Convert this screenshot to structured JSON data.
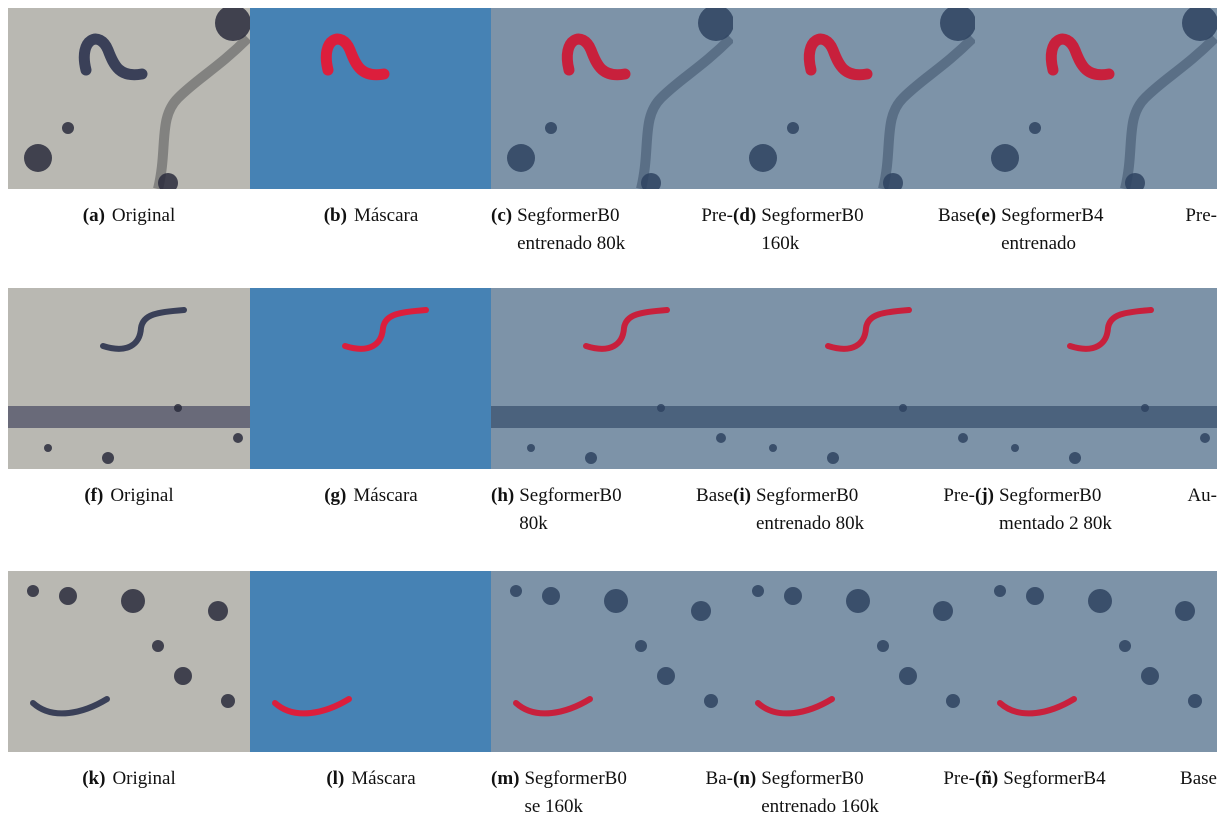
{
  "figure": {
    "rows": [
      {
        "panels": [
          {
            "label": "(a)",
            "caption": [
              "Original"
            ]
          },
          {
            "label": "(b)",
            "caption": [
              "Máscara"
            ]
          },
          {
            "label": "(c)",
            "caption": [
              "SegformerB0 Pre-",
              "entrenado 80k"
            ]
          },
          {
            "label": "(d)",
            "caption": [
              "SegformerB0 Base",
              "160k"
            ]
          },
          {
            "label": "(e)",
            "caption": [
              "SegformerB4 Pre-",
              "entrenado"
            ]
          }
        ]
      },
      {
        "panels": [
          {
            "label": "(f)",
            "caption": [
              "Original"
            ]
          },
          {
            "label": "(g)",
            "caption": [
              "Máscara"
            ]
          },
          {
            "label": "(h)",
            "caption": [
              "SegformerB0 Base",
              "80k"
            ]
          },
          {
            "label": "(i)",
            "caption": [
              "SegformerB0 Pre-",
              "entrenado 80k"
            ]
          },
          {
            "label": "(j)",
            "caption": [
              "SegformerB0 Au-",
              "mentado 2 80k"
            ]
          }
        ]
      },
      {
        "panels": [
          {
            "label": "(k)",
            "caption": [
              "Original"
            ]
          },
          {
            "label": "(l)",
            "caption": [
              "Máscara"
            ]
          },
          {
            "label": "(m)",
            "caption": [
              "SegformerB0 Ba-",
              "se 160k"
            ]
          },
          {
            "label": "(n)",
            "caption": [
              "SegformerB0 Pre-",
              "entrenado 160k"
            ]
          },
          {
            "label": "(ñ)",
            "caption": [
              "SegformerB4 Base"
            ]
          }
        ]
      }
    ]
  }
}
